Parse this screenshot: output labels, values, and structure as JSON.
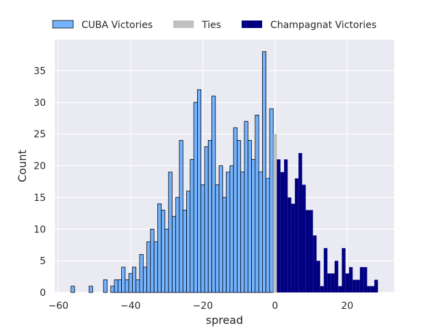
{
  "chart_data": {
    "type": "bar",
    "title": "",
    "xlabel": "spread",
    "ylabel": "Count",
    "xlim": [
      -61,
      33
    ],
    "ylim": [
      0,
      39.9
    ],
    "xticks": [
      -60,
      -40,
      -20,
      0,
      20
    ],
    "xtick_labels": [
      "−60",
      "−40",
      "−20",
      "0",
      "20"
    ],
    "yticks": [
      0,
      5,
      10,
      15,
      20,
      25,
      30,
      35
    ],
    "grid": true,
    "legend_position": "top",
    "series": [
      {
        "name": "CUBA Victories",
        "color": "#74b3ff",
        "edge_color": "#000000",
        "x": [
          -56,
          -51,
          -47,
          -45,
          -44,
          -43,
          -42,
          -41,
          -40,
          -39,
          -38,
          -37,
          -36,
          -35,
          -34,
          -33,
          -32,
          -31,
          -30,
          -29,
          -28,
          -27,
          -26,
          -25,
          -24,
          -23,
          -22,
          -21,
          -20,
          -19,
          -18,
          -17,
          -16,
          -15,
          -14,
          -13,
          -12,
          -11,
          -10,
          -9,
          -8,
          -7,
          -6,
          -5,
          -4,
          -3,
          -2,
          -1
        ],
        "values": [
          1,
          1,
          2,
          1,
          2,
          2,
          4,
          2,
          3,
          4,
          2,
          6,
          4,
          8,
          10,
          8,
          14,
          13,
          10,
          19,
          12,
          15,
          24,
          13,
          16,
          21,
          30,
          32,
          17,
          23,
          24,
          31,
          17,
          20,
          15,
          19,
          20,
          26,
          24,
          19,
          27,
          24,
          21,
          28,
          19,
          38,
          18,
          29
        ]
      },
      {
        "name": "Ties",
        "color": "#c0c0c0",
        "x": [
          0
        ],
        "values": [
          25
        ]
      },
      {
        "name": "Champagnat Victories",
        "color": "#000080",
        "x": [
          1,
          2,
          3,
          4,
          5,
          6,
          7,
          8,
          9,
          10,
          11,
          12,
          13,
          14,
          15,
          16,
          17,
          18,
          19,
          20,
          21,
          22,
          23,
          24,
          25,
          26,
          27,
          28
        ],
        "values": [
          21,
          19,
          21,
          15,
          14,
          18,
          22,
          17,
          13,
          13,
          9,
          5,
          1,
          7,
          3,
          3,
          5,
          1,
          7,
          3,
          4,
          2,
          2,
          4,
          4,
          1,
          1,
          2
        ]
      }
    ]
  }
}
